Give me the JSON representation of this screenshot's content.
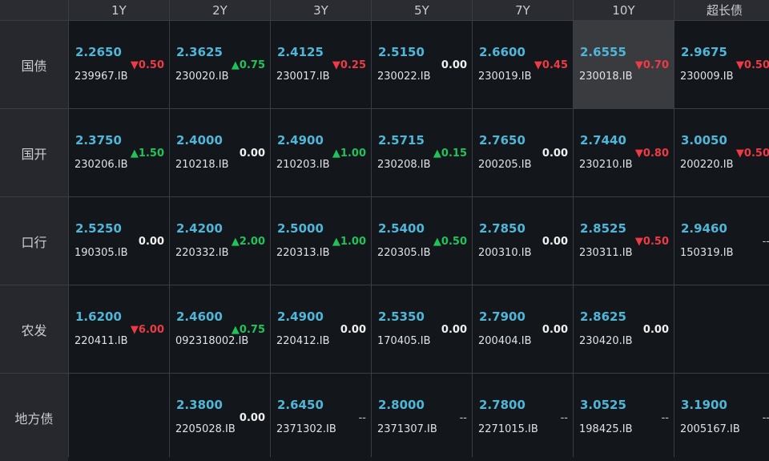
{
  "columns": [
    "1Y",
    "2Y",
    "3Y",
    "5Y",
    "7Y",
    "10Y",
    "超长债"
  ],
  "rows": [
    {
      "label": "国债",
      "cells": [
        {
          "yield": "2.2650",
          "code": "239967.IB",
          "change": "▼0.50",
          "dir": "down"
        },
        {
          "yield": "2.3625",
          "code": "230020.IB",
          "change": "▲0.75",
          "dir": "up"
        },
        {
          "yield": "2.4125",
          "code": "230017.IB",
          "change": "▼0.25",
          "dir": "down"
        },
        {
          "yield": "2.5150",
          "code": "230022.IB",
          "change": "0.00",
          "dir": "none"
        },
        {
          "yield": "2.6600",
          "code": "230019.IB",
          "change": "▼0.45",
          "dir": "down"
        },
        {
          "yield": "2.6555",
          "code": "230018.IB",
          "change": "▼0.70",
          "dir": "down",
          "highlight": true
        },
        {
          "yield": "2.9675",
          "code": "230009.IB",
          "change": "▼0.50",
          "dir": "down"
        }
      ]
    },
    {
      "label": "国开",
      "cells": [
        {
          "yield": "2.3750",
          "code": "230206.IB",
          "change": "▲1.50",
          "dir": "up"
        },
        {
          "yield": "2.4000",
          "code": "210218.IB",
          "change": "0.00",
          "dir": "none"
        },
        {
          "yield": "2.4900",
          "code": "210203.IB",
          "change": "▲1.00",
          "dir": "up"
        },
        {
          "yield": "2.5715",
          "code": "230208.IB",
          "change": "▲0.15",
          "dir": "up"
        },
        {
          "yield": "2.7650",
          "code": "200205.IB",
          "change": "0.00",
          "dir": "none"
        },
        {
          "yield": "2.7440",
          "code": "230210.IB",
          "change": "▼0.80",
          "dir": "down"
        },
        {
          "yield": "3.0050",
          "code": "200220.IB",
          "change": "▼0.50",
          "dir": "down"
        }
      ]
    },
    {
      "label": "口行",
      "cells": [
        {
          "yield": "2.5250",
          "code": "190305.IB",
          "change": "0.00",
          "dir": "none"
        },
        {
          "yield": "2.4200",
          "code": "220332.IB",
          "change": "▲2.00",
          "dir": "up"
        },
        {
          "yield": "2.5000",
          "code": "220313.IB",
          "change": "▲1.00",
          "dir": "up"
        },
        {
          "yield": "2.5400",
          "code": "220305.IB",
          "change": "▲0.50",
          "dir": "up"
        },
        {
          "yield": "2.7850",
          "code": "200310.IB",
          "change": "0.00",
          "dir": "none"
        },
        {
          "yield": "2.8525",
          "code": "230311.IB",
          "change": "▼0.50",
          "dir": "down"
        },
        {
          "yield": "2.9460",
          "code": "150319.IB",
          "change": "--",
          "dir": "dash"
        }
      ]
    },
    {
      "label": "农发",
      "cells": [
        {
          "yield": "1.6200",
          "code": "220411.IB",
          "change": "▼6.00",
          "dir": "down"
        },
        {
          "yield": "2.4600",
          "code": "092318002.IB",
          "change": "▲0.75",
          "dir": "up"
        },
        {
          "yield": "2.4900",
          "code": "220412.IB",
          "change": "0.00",
          "dir": "none"
        },
        {
          "yield": "2.5350",
          "code": "170405.IB",
          "change": "0.00",
          "dir": "none"
        },
        {
          "yield": "2.7900",
          "code": "200404.IB",
          "change": "0.00",
          "dir": "none"
        },
        {
          "yield": "2.8625",
          "code": "230420.IB",
          "change": "0.00",
          "dir": "none"
        },
        null
      ]
    },
    {
      "label": "地方债",
      "cells": [
        null,
        {
          "yield": "2.3800",
          "code": "2205028.IB",
          "change": "0.00",
          "dir": "none"
        },
        {
          "yield": "2.6450",
          "code": "2371302.IB",
          "change": "--",
          "dir": "dash"
        },
        {
          "yield": "2.8000",
          "code": "2371307.IB",
          "change": "--",
          "dir": "dash"
        },
        {
          "yield": "2.7800",
          "code": "2271015.IB",
          "change": "--",
          "dir": "dash"
        },
        {
          "yield": "3.0525",
          "code": "198425.IB",
          "change": "--",
          "dir": "dash"
        },
        {
          "yield": "3.1900",
          "code": "2005167.IB",
          "change": "--",
          "dir": "dash"
        }
      ]
    }
  ]
}
